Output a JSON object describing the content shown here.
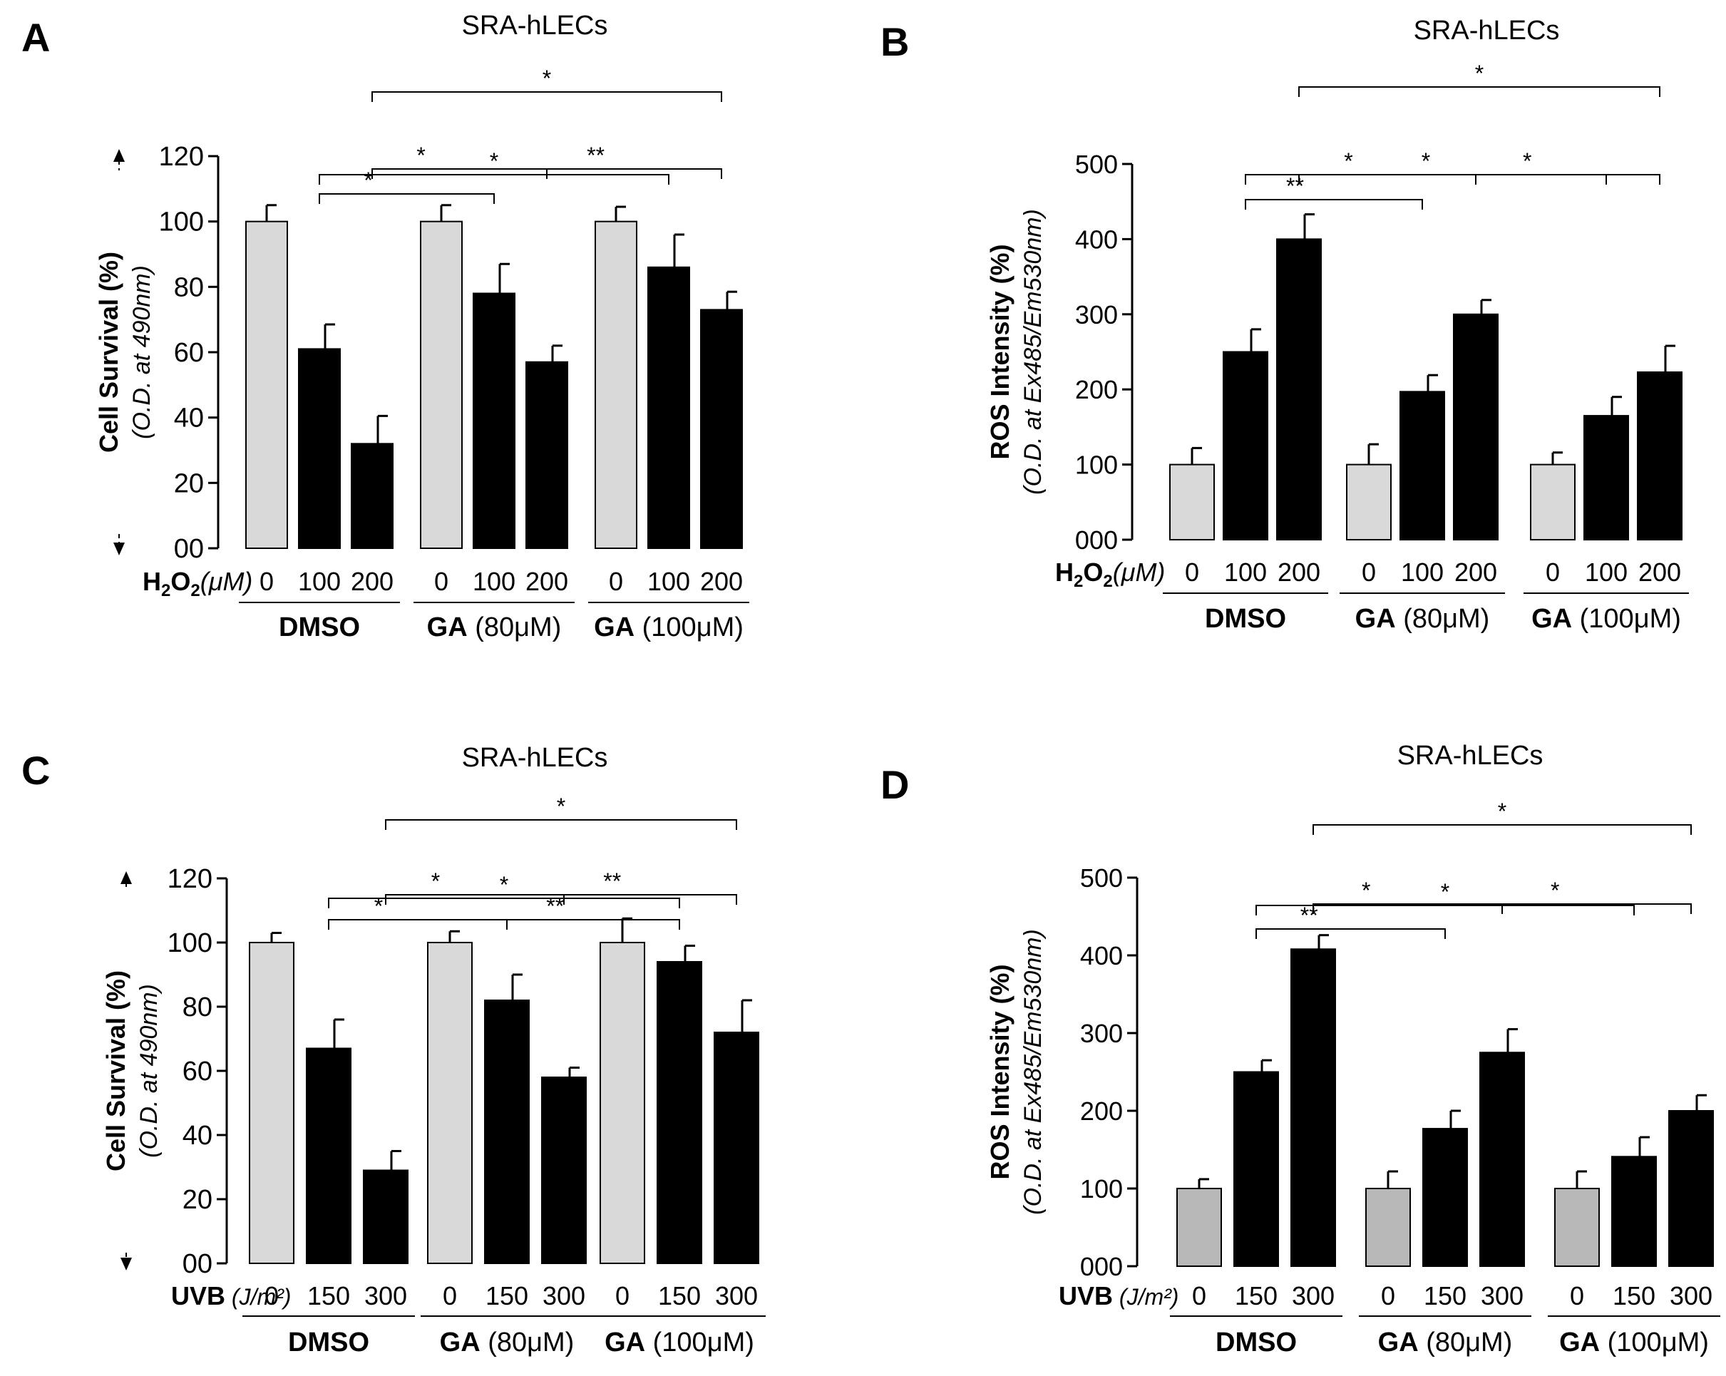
{
  "figure": {
    "colors": {
      "control": "#d9d9d9",
      "control_d": "#b8b8b8",
      "treated": "#000000",
      "axis": "#000000"
    }
  },
  "chart_data": [
    {
      "panel": "A",
      "type": "bar",
      "title": "SRA-hLECs",
      "ylabel": "Cell Survival (%)",
      "ylabel_sub": "(O.D. at 490nm)",
      "ylim": [
        0,
        120
      ],
      "yticks": [
        "00",
        "20",
        "40",
        "60",
        "80",
        "100",
        "120"
      ],
      "treatment_label": "H",
      "treatment_sub": "2",
      "treatment_mid": "O",
      "treatment_unit": "(μM)",
      "groups": [
        {
          "name": "DMSO",
          "unit": "",
          "categories": [
            "0",
            "100",
            "200"
          ],
          "values": [
            100,
            61,
            32
          ],
          "errors": [
            5,
            7.5,
            8.5
          ]
        },
        {
          "name": "GA",
          "unit": "(80μM)",
          "categories": [
            "0",
            "100",
            "200"
          ],
          "values": [
            100,
            78,
            57
          ],
          "errors": [
            5,
            9,
            5
          ]
        },
        {
          "name": "GA",
          "unit": "(100μM)",
          "categories": [
            "0",
            "100",
            "200"
          ],
          "values": [
            100,
            86,
            73
          ],
          "errors": [
            4.5,
            10,
            5.5
          ]
        }
      ],
      "significance": [
        {
          "from": [
            0,
            1
          ],
          "to": [
            1,
            1
          ],
          "label": "*"
        },
        {
          "from": [
            0,
            2
          ],
          "to": [
            1,
            2
          ],
          "label": "*"
        },
        {
          "from": [
            1,
            2
          ],
          "to": [
            2,
            2
          ],
          "label": "**"
        },
        {
          "from": [
            0,
            1
          ],
          "to": [
            2,
            1
          ],
          "label": "*"
        },
        {
          "from": [
            0,
            2
          ],
          "to": [
            2,
            2
          ],
          "label": "*"
        }
      ]
    },
    {
      "panel": "B",
      "type": "bar",
      "title": "SRA-hLECs",
      "ylabel": "ROS Intensity (%)",
      "ylabel_sub": "(O.D. at Ex485/Em530nm)",
      "ylim": [
        0,
        500
      ],
      "yticks": [
        "000",
        "100",
        "200",
        "300",
        "400",
        "500"
      ],
      "treatment_label": "H",
      "treatment_sub": "2",
      "treatment_mid": "O",
      "treatment_unit": "(μM)",
      "groups": [
        {
          "name": "DMSO",
          "unit": "",
          "categories": [
            "0",
            "100",
            "200"
          ],
          "values": [
            100,
            250,
            400
          ],
          "errors": [
            22,
            30,
            33
          ]
        },
        {
          "name": "GA",
          "unit": "(80μM)",
          "categories": [
            "0",
            "100",
            "200"
          ],
          "values": [
            100,
            197,
            300
          ],
          "errors": [
            27,
            22,
            19
          ]
        },
        {
          "name": "GA",
          "unit": "(100μM)",
          "categories": [
            "0",
            "100",
            "200"
          ],
          "values": [
            100,
            165,
            223
          ],
          "errors": [
            16,
            25,
            35
          ]
        }
      ],
      "significance": [
        {
          "from": [
            0,
            1
          ],
          "to": [
            1,
            1
          ],
          "label": "**"
        },
        {
          "from": [
            0,
            2
          ],
          "to": [
            1,
            2
          ],
          "label": "*"
        },
        {
          "from": [
            1,
            2
          ],
          "to": [
            2,
            2
          ],
          "label": "*"
        },
        {
          "from": [
            0,
            1
          ],
          "to": [
            2,
            1
          ],
          "label": "*"
        },
        {
          "from": [
            0,
            2
          ],
          "to": [
            2,
            2
          ],
          "label": "*"
        }
      ]
    },
    {
      "panel": "C",
      "type": "bar",
      "title": "SRA-hLECs",
      "ylabel": "Cell Survival (%)",
      "ylabel_sub": "(O.D. at 490nm)",
      "ylim": [
        0,
        120
      ],
      "yticks": [
        "00",
        "20",
        "40",
        "60",
        "80",
        "100",
        "120"
      ],
      "treatment_label": "UVB",
      "treatment_sub": "",
      "treatment_mid": "",
      "treatment_unit": "(J/m²)",
      "groups": [
        {
          "name": "DMSO",
          "unit": "",
          "categories": [
            "0",
            "150",
            "300"
          ],
          "values": [
            100,
            67,
            29
          ],
          "errors": [
            3,
            9,
            6
          ]
        },
        {
          "name": "GA",
          "unit": "(80μM)",
          "categories": [
            "0",
            "150",
            "300"
          ],
          "values": [
            100,
            82,
            58
          ],
          "errors": [
            3.5,
            8,
            3
          ]
        },
        {
          "name": "GA",
          "unit": "(100μM)",
          "categories": [
            "0",
            "150",
            "300"
          ],
          "values": [
            100,
            94,
            72
          ],
          "errors": [
            7.5,
            5,
            10
          ]
        }
      ],
      "significance": [
        {
          "from": [
            0,
            1
          ],
          "to": [
            1,
            1
          ],
          "label": "*"
        },
        {
          "from": [
            1,
            1
          ],
          "to": [
            2,
            1
          ],
          "label": "**"
        },
        {
          "from": [
            0,
            2
          ],
          "to": [
            1,
            2
          ],
          "label": "*"
        },
        {
          "from": [
            1,
            2
          ],
          "to": [
            2,
            2
          ],
          "label": "**"
        },
        {
          "from": [
            0,
            1
          ],
          "to": [
            2,
            1
          ],
          "label": "*"
        },
        {
          "from": [
            0,
            2
          ],
          "to": [
            2,
            2
          ],
          "label": "*"
        }
      ]
    },
    {
      "panel": "D",
      "type": "bar",
      "title": "SRA-hLECs",
      "ylabel": "ROS Intensity (%)",
      "ylabel_sub": "(O.D. at Ex485/Em530nm)",
      "ylim": [
        0,
        500
      ],
      "yticks": [
        "000",
        "100",
        "200",
        "300",
        "400",
        "500"
      ],
      "treatment_label": "UVB",
      "treatment_sub": "",
      "treatment_mid": "",
      "treatment_unit": "(J/m²)",
      "groups": [
        {
          "name": "DMSO",
          "unit": "",
          "categories": [
            "0",
            "150",
            "300"
          ],
          "values": [
            100,
            250,
            408
          ],
          "errors": [
            12,
            15,
            18
          ]
        },
        {
          "name": "GA",
          "unit": "(80μM)",
          "categories": [
            "0",
            "150",
            "300"
          ],
          "values": [
            100,
            177,
            275
          ],
          "errors": [
            22,
            23,
            30
          ]
        },
        {
          "name": "GA",
          "unit": "(100μM)",
          "categories": [
            "0",
            "150",
            "300"
          ],
          "values": [
            100,
            141,
            200
          ],
          "errors": [
            22,
            25,
            20
          ]
        }
      ],
      "significance": [
        {
          "from": [
            0,
            1
          ],
          "to": [
            1,
            1
          ],
          "label": "**"
        },
        {
          "from": [
            0,
            2
          ],
          "to": [
            1,
            2
          ],
          "label": "*"
        },
        {
          "from": [
            1,
            2
          ],
          "to": [
            2,
            2
          ],
          "label": "*"
        },
        {
          "from": [
            0,
            1
          ],
          "to": [
            2,
            1
          ],
          "label": "*"
        },
        {
          "from": [
            0,
            2
          ],
          "to": [
            2,
            2
          ],
          "label": "*"
        }
      ]
    }
  ]
}
